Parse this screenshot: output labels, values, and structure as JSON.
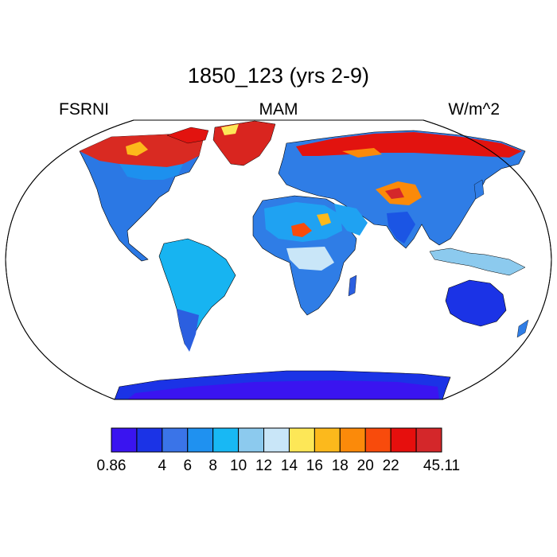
{
  "title": "1850_123 (yrs 2-9)",
  "left_string": "FSRNI",
  "center_string": "MAM",
  "right_string": "W/m^2",
  "colorbar": {
    "colors": [
      "#3a14f0",
      "#1b33e6",
      "#3a74e8",
      "#1f91f0",
      "#18b8f4",
      "#8ccaee",
      "#c9e6f8",
      "#fde757",
      "#fcb91c",
      "#fb8a0a",
      "#f84b0c",
      "#e60f0d",
      "#d4272a"
    ],
    "labels": [
      "0.86",
      "4",
      "6",
      "8",
      "10",
      "12",
      "14",
      "16",
      "18",
      "20",
      "22",
      "45.11"
    ]
  },
  "map": {
    "projection": "robinson",
    "ocean_color": "#ffffff",
    "outline_color": "#000000"
  }
}
